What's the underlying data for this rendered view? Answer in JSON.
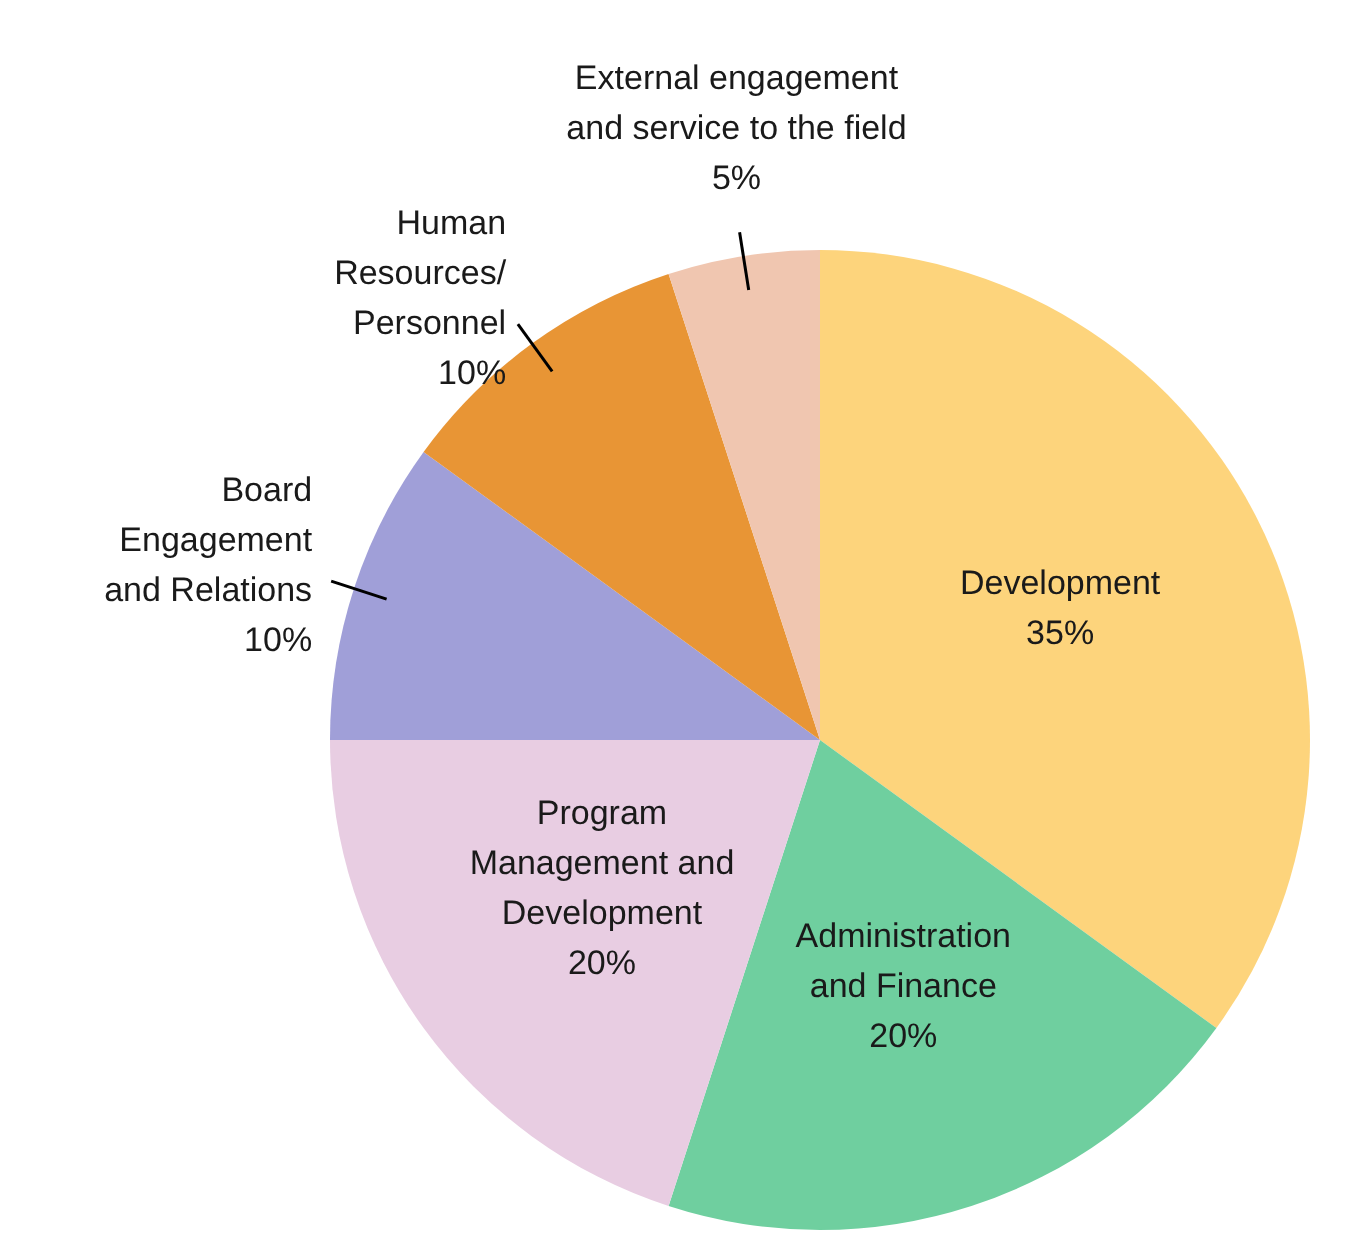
{
  "chart_data": {
    "type": "pie",
    "categories": [
      "Development",
      "Administration\nand Finance",
      "Program\nManagement and\nDevelopment",
      "Board\nEngagement\nand Relations",
      "Human\nResources/\nPersonnel",
      "External engagement\nand service to the field"
    ],
    "values": [
      35,
      20,
      20,
      10,
      10,
      5
    ],
    "value_labels": [
      "35%",
      "20%",
      "20%",
      "10%",
      "10%",
      "5%"
    ],
    "colors": [
      "#fdd47c",
      "#6fcf9f",
      "#e8cde2",
      "#a09fd8",
      "#e89535",
      "#f0c6b0"
    ]
  }
}
